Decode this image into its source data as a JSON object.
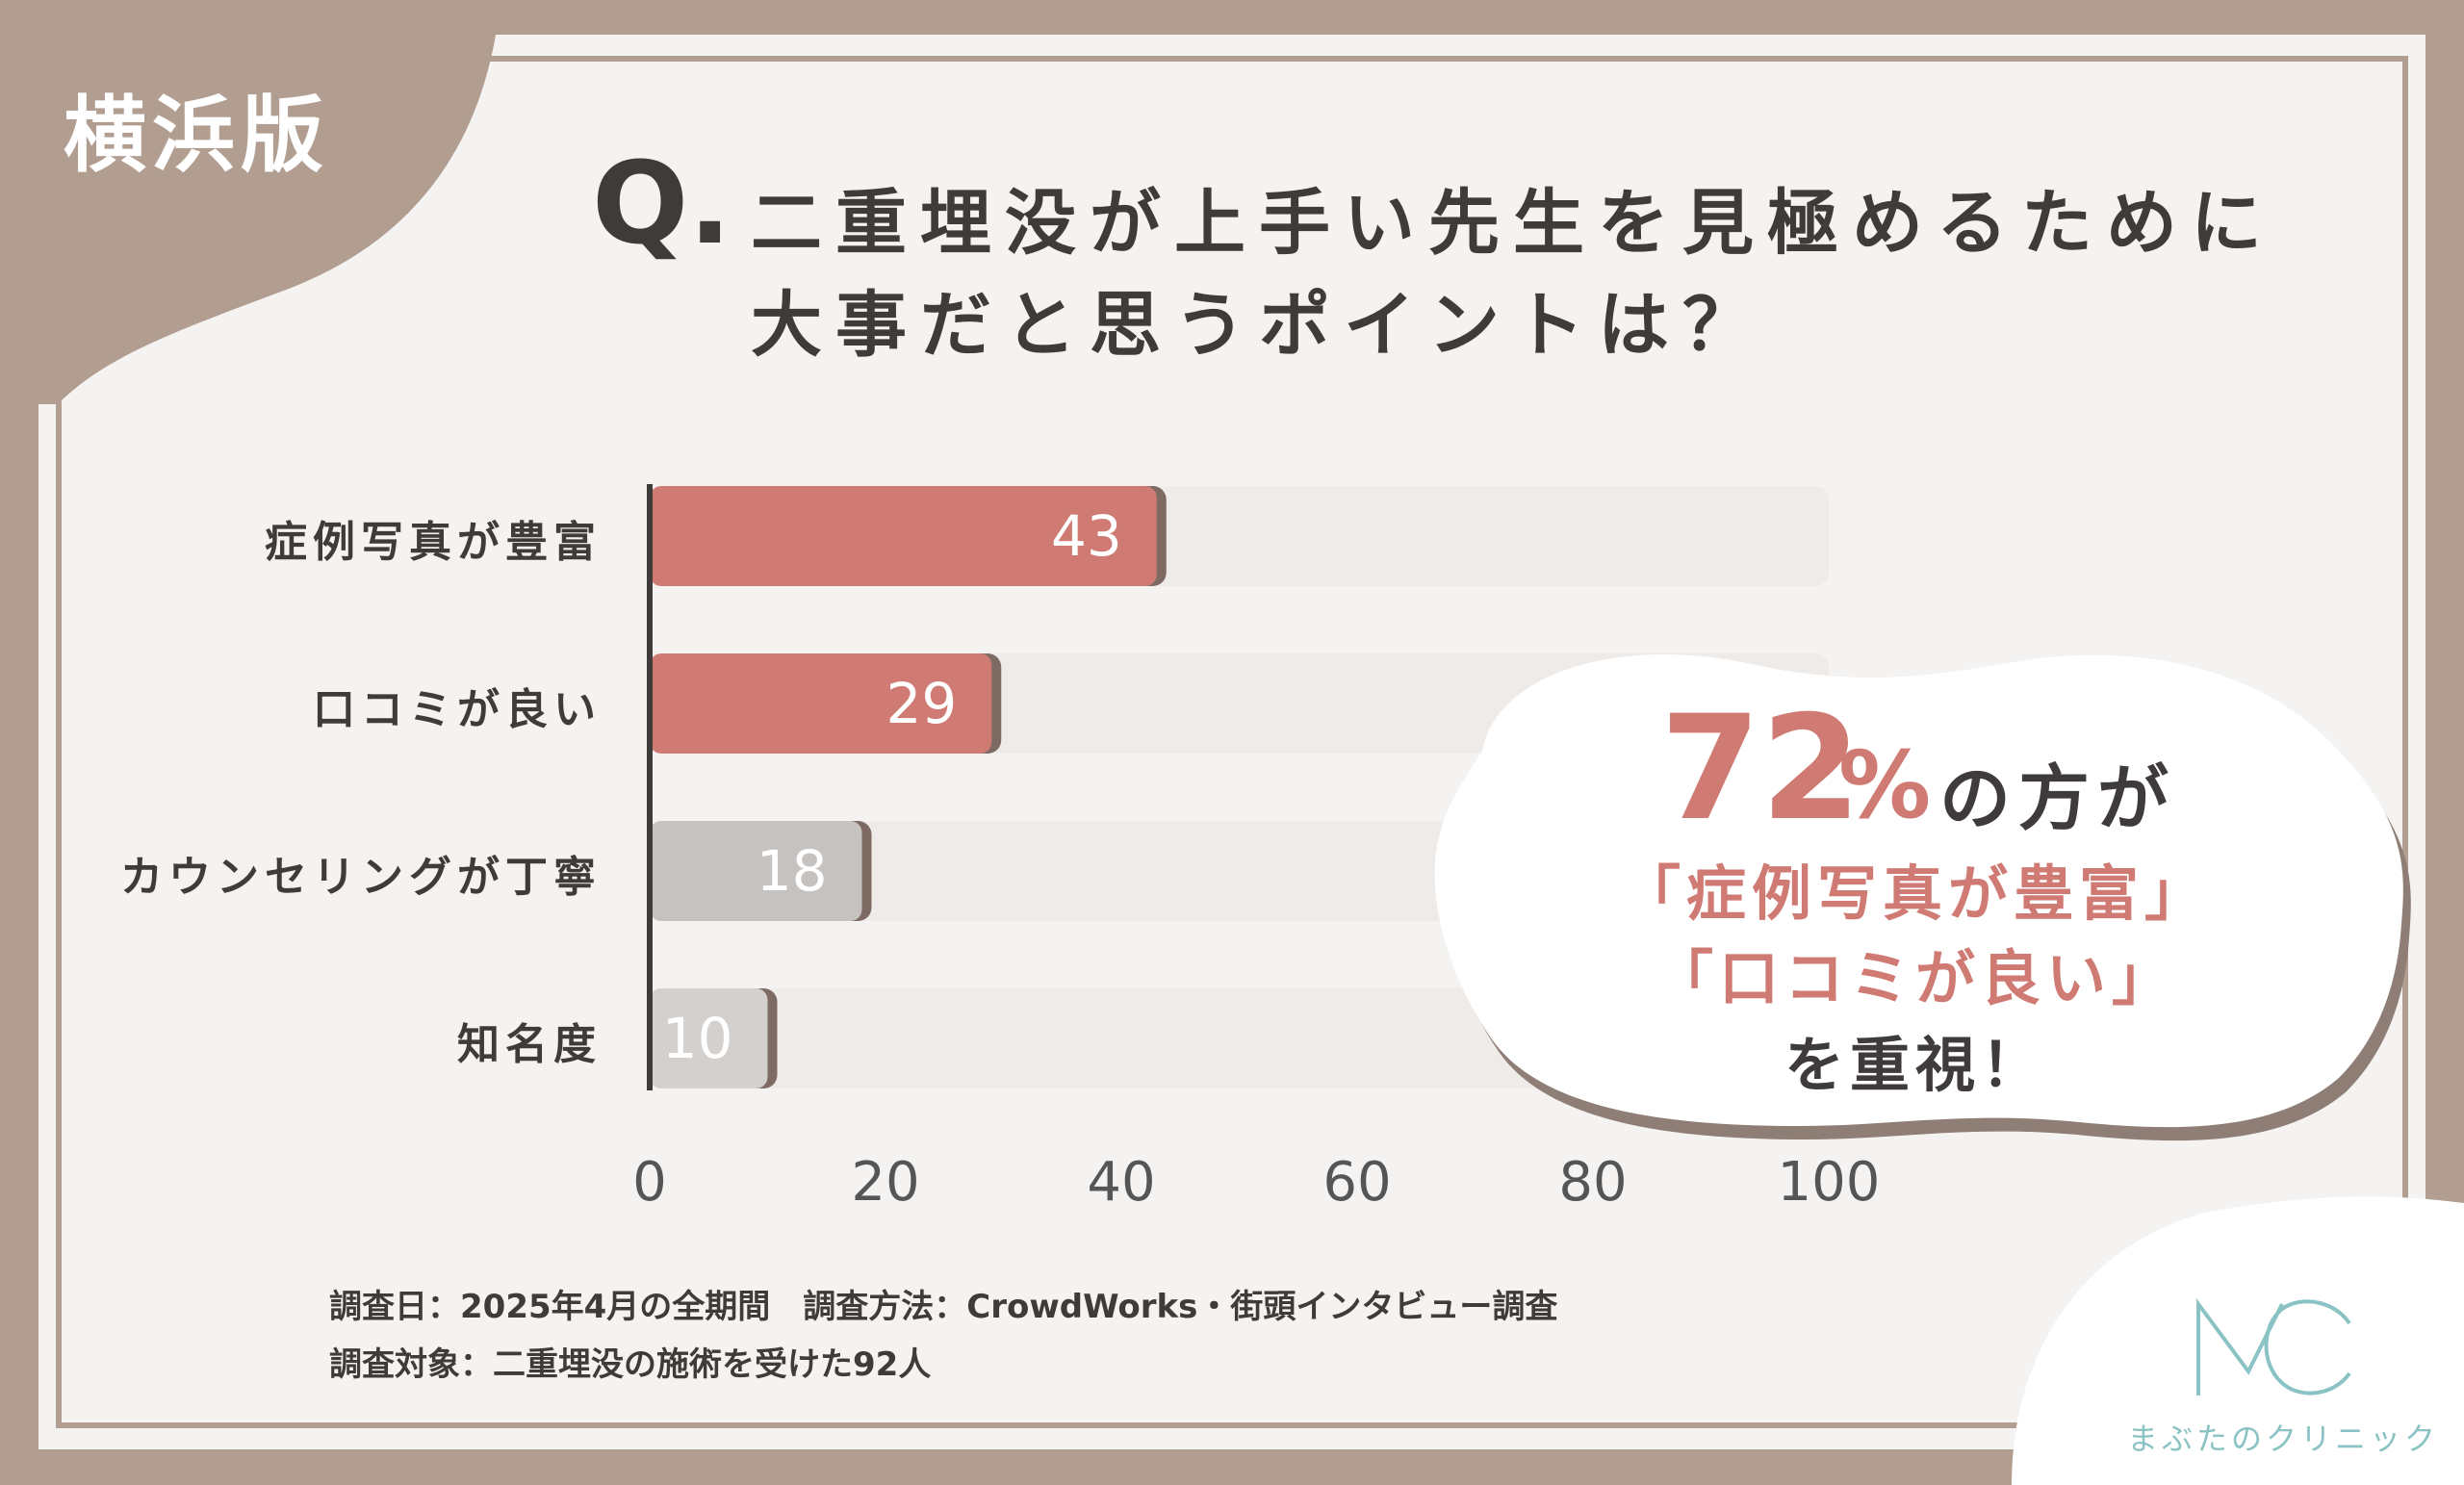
{
  "edition_label": "横浜版",
  "question": {
    "mark": "Q.",
    "line1": "二重埋没が上手い先生を見極めるために",
    "line2": "大事だと思うポイントは？"
  },
  "chart_data": {
    "type": "bar",
    "orientation": "horizontal",
    "categories": [
      "症例写真が豊富",
      "口コミが良い",
      "カウンセリングが丁寧",
      "知名度"
    ],
    "values": [
      43,
      29,
      18,
      10
    ],
    "xlim": [
      0,
      100
    ],
    "x_ticks": [
      0,
      20,
      40,
      60,
      80,
      100
    ],
    "highlight_colors": [
      "#d07a74",
      "#d07a74",
      "#c6c2c0",
      "#d3d0ce"
    ],
    "track_color": "#efebe8",
    "grid": false,
    "legend": "none"
  },
  "callout": {
    "percent_value": "72",
    "percent_sign": "%",
    "rest_of_line1": "の方が",
    "line2": "「症例写真が豊富」",
    "line3": "「口コミが良い」",
    "line4": "を重視！"
  },
  "footnotes": {
    "line1": "調査日：2025年4月の全期間　調査方法：CrowdWorks・街頭インタビュー調査",
    "line2": "調査対象：二重埋没の施術を受けた92人"
  },
  "logo": {
    "mark": "MC",
    "name": "まぶたのクリニック",
    "color": "#8bc3c4"
  },
  "colors": {
    "frame": "#b29d91",
    "accent": "#d07a74",
    "text": "#3e3b3a"
  }
}
